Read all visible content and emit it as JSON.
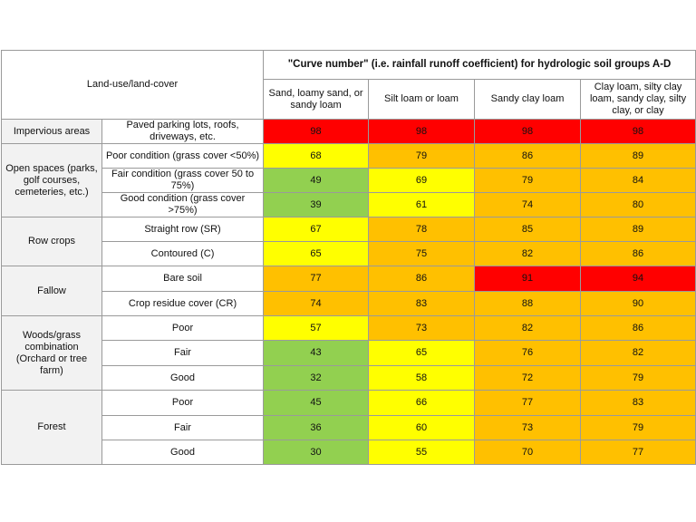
{
  "header": {
    "land_use": "Land-use/land-cover",
    "curve_title": "\"Curve number\" (i.e. rainfall runoff coefficient) for hydrologic soil groups A-D",
    "soil_groups": [
      "Sand, loamy sand, or sandy loam",
      "Silt loam or loam",
      "Sandy clay loam",
      "Clay loam, silty clay loam, sandy clay, silty clay, or clay"
    ]
  },
  "colors": {
    "green": "#92d050",
    "yellow": "#ffff00",
    "orange": "#ffc000",
    "red": "#ff0000"
  },
  "groups": [
    {
      "label": "Impervious areas",
      "rows": [
        {
          "label": "Paved parking lots, roofs, driveways, etc.",
          "values": [
            "98",
            "98",
            "98",
            "98"
          ],
          "colors": [
            "red",
            "red",
            "red",
            "red"
          ]
        }
      ]
    },
    {
      "label": "Open spaces (parks, golf courses, cemeteries, etc.)",
      "rows": [
        {
          "label": "Poor condition (grass cover <50%)",
          "values": [
            "68",
            "79",
            "86",
            "89"
          ],
          "colors": [
            "yellow",
            "orange",
            "orange",
            "orange"
          ]
        },
        {
          "label": "Fair condition (grass cover 50 to 75%)",
          "values": [
            "49",
            "69",
            "79",
            "84"
          ],
          "colors": [
            "green",
            "yellow",
            "orange",
            "orange"
          ]
        },
        {
          "label": "Good condition (grass cover >75%)",
          "values": [
            "39",
            "61",
            "74",
            "80"
          ],
          "colors": [
            "green",
            "yellow",
            "orange",
            "orange"
          ]
        }
      ]
    },
    {
      "label": "Row crops",
      "rows": [
        {
          "label": "Straight row (SR)",
          "values": [
            "67",
            "78",
            "85",
            "89"
          ],
          "colors": [
            "yellow",
            "orange",
            "orange",
            "orange"
          ]
        },
        {
          "label": "Contoured (C)",
          "values": [
            "65",
            "75",
            "82",
            "86"
          ],
          "colors": [
            "yellow",
            "orange",
            "orange",
            "orange"
          ]
        }
      ]
    },
    {
      "label": "Fallow",
      "rows": [
        {
          "label": "Bare soil",
          "values": [
            "77",
            "86",
            "91",
            "94"
          ],
          "colors": [
            "orange",
            "orange",
            "red",
            "red"
          ]
        },
        {
          "label": "Crop residue cover (CR)",
          "values": [
            "74",
            "83",
            "88",
            "90"
          ],
          "colors": [
            "orange",
            "orange",
            "orange",
            "orange"
          ]
        }
      ]
    },
    {
      "label": "Woods/grass combination (Orchard or tree farm)",
      "rows": [
        {
          "label": "Poor",
          "values": [
            "57",
            "73",
            "82",
            "86"
          ],
          "colors": [
            "yellow",
            "orange",
            "orange",
            "orange"
          ]
        },
        {
          "label": "Fair",
          "values": [
            "43",
            "65",
            "76",
            "82"
          ],
          "colors": [
            "green",
            "yellow",
            "orange",
            "orange"
          ]
        },
        {
          "label": "Good",
          "values": [
            "32",
            "58",
            "72",
            "79"
          ],
          "colors": [
            "green",
            "yellow",
            "orange",
            "orange"
          ]
        }
      ]
    },
    {
      "label": "Forest",
      "rows": [
        {
          "label": "Poor",
          "values": [
            "45",
            "66",
            "77",
            "83"
          ],
          "colors": [
            "green",
            "yellow",
            "orange",
            "orange"
          ]
        },
        {
          "label": "Fair",
          "values": [
            "36",
            "60",
            "73",
            "79"
          ],
          "colors": [
            "green",
            "yellow",
            "orange",
            "orange"
          ]
        },
        {
          "label": "Good",
          "values": [
            "30",
            "55",
            "70",
            "77"
          ],
          "colors": [
            "green",
            "yellow",
            "orange",
            "orange"
          ]
        }
      ]
    }
  ]
}
